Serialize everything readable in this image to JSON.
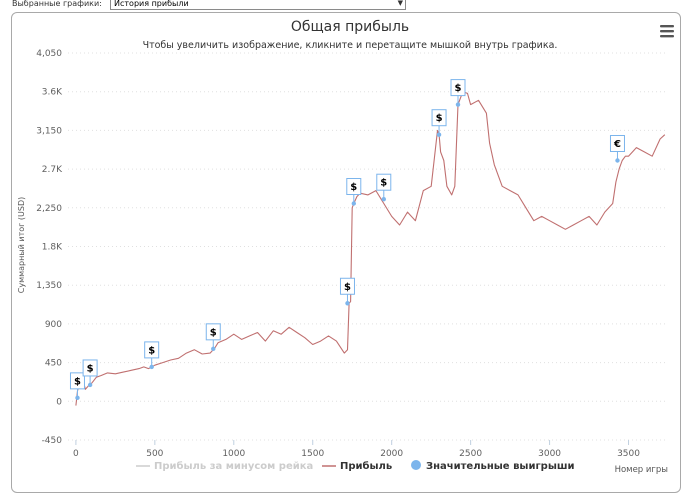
{
  "page": {
    "selector_label": "Выбранные графики:",
    "selector_value": "История прибыли"
  },
  "chart_data": {
    "type": "line",
    "title": "Общая прибыль",
    "subtitle": "Чтобы увеличить изображение, кликните и перетащите мышкой внутрь графика.",
    "xlabel": "Номер игры",
    "ylabel": "Суммарный итог (USD)",
    "xlim": [
      -50,
      3750
    ],
    "ylim": [
      -450,
      4050
    ],
    "xticks": [
      0,
      500,
      1000,
      1500,
      2000,
      2500,
      3000,
      3500
    ],
    "yticks": [
      -450,
      0,
      450,
      900,
      1350,
      1800,
      2250,
      2700,
      3150,
      3600,
      4050
    ],
    "ytick_labels": [
      "-450",
      "0",
      "450",
      "900",
      "1,350",
      "1.8K",
      "2,250",
      "2.7K",
      "3,150",
      "3.6K",
      "4,050"
    ],
    "grid": true,
    "menu_icon": "hamburger-menu-icon",
    "legend": [
      {
        "name": "Прибыль за минусом рейка",
        "color": "#cccccc",
        "symbol": "line",
        "hidden": true
      },
      {
        "name": "Прибыль",
        "color": "#c07070",
        "symbol": "line",
        "hidden": false
      },
      {
        "name": "Значительные выигрыши",
        "color": "#7cb5ec",
        "symbol": "circle",
        "hidden": false
      }
    ],
    "series": [
      {
        "name": "Прибыль",
        "color": "#c07070",
        "x": [
          0,
          10,
          20,
          30,
          40,
          60,
          80,
          100,
          130,
          160,
          200,
          250,
          300,
          350,
          400,
          430,
          460,
          500,
          550,
          600,
          650,
          700,
          750,
          800,
          850,
          880,
          900,
          950,
          1000,
          1050,
          1100,
          1150,
          1200,
          1250,
          1300,
          1350,
          1400,
          1450,
          1500,
          1550,
          1600,
          1650,
          1700,
          1720,
          1730,
          1740,
          1750,
          1760,
          1780,
          1800,
          1850,
          1900,
          1950,
          2000,
          2050,
          2100,
          2150,
          2200,
          2250,
          2290,
          2300,
          2310,
          2330,
          2350,
          2380,
          2400,
          2420,
          2430,
          2440,
          2450,
          2480,
          2500,
          2550,
          2600,
          2620,
          2650,
          2700,
          2750,
          2800,
          2850,
          2900,
          2950,
          3000,
          3050,
          3100,
          3150,
          3200,
          3250,
          3300,
          3350,
          3400,
          3420,
          3440,
          3460,
          3480,
          3500,
          3550,
          3600,
          3650,
          3700,
          3730
        ],
        "values": [
          -50,
          120,
          200,
          330,
          280,
          140,
          180,
          210,
          280,
          300,
          330,
          320,
          340,
          360,
          380,
          400,
          380,
          420,
          450,
          480,
          500,
          560,
          600,
          550,
          560,
          620,
          680,
          720,
          780,
          720,
          760,
          800,
          700,
          820,
          780,
          860,
          800,
          740,
          660,
          700,
          760,
          700,
          560,
          600,
          1140,
          1160,
          2250,
          2300,
          2380,
          2420,
          2400,
          2450,
          2300,
          2150,
          2050,
          2200,
          2100,
          2450,
          2500,
          3150,
          3100,
          2900,
          2800,
          2500,
          2400,
          2500,
          3450,
          3500,
          3550,
          3600,
          3580,
          3450,
          3500,
          3350,
          3000,
          2750,
          2500,
          2450,
          2400,
          2250,
          2100,
          2150,
          2100,
          2050,
          2000,
          2050,
          2100,
          2150,
          2050,
          2200,
          2300,
          2550,
          2700,
          2800,
          2850,
          2850,
          2950,
          2900,
          2850,
          3050,
          3100
        ]
      }
    ],
    "markers": [
      {
        "x": 10,
        "y": 40,
        "label": "$"
      },
      {
        "x": 90,
        "y": 190,
        "label": "$"
      },
      {
        "x": 480,
        "y": 400,
        "label": "$"
      },
      {
        "x": 870,
        "y": 610,
        "label": "$"
      },
      {
        "x": 1720,
        "y": 1140,
        "label": "$"
      },
      {
        "x": 1760,
        "y": 2300,
        "label": "$"
      },
      {
        "x": 1950,
        "y": 2350,
        "label": "$"
      },
      {
        "x": 2300,
        "y": 3100,
        "label": "$"
      },
      {
        "x": 2420,
        "y": 3450,
        "label": "$"
      },
      {
        "x": 3430,
        "y": 2800,
        "label": "€"
      }
    ]
  }
}
